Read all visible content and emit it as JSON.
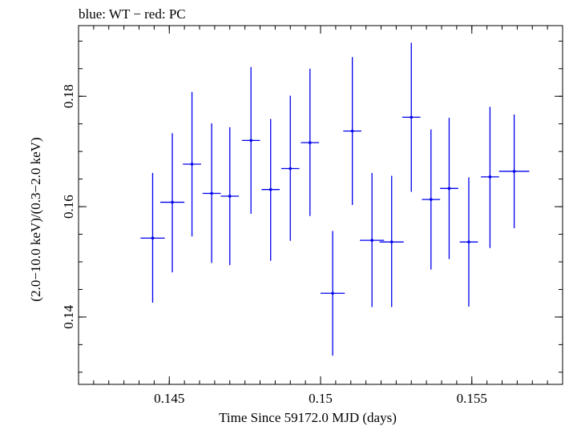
{
  "chart_data": {
    "type": "scatter",
    "title": "blue: WT − red: PC",
    "xlabel": "Time Since 59172.0 MJD (days)",
    "ylabel": "(2.0−10.0 keV)/(0.3−2.0 keV)",
    "xlim": [
      0.142,
      0.158
    ],
    "ylim": [
      0.1278,
      0.1928
    ],
    "x_ticks": [
      0.145,
      0.15,
      0.155
    ],
    "x_tick_labels": [
      "0.145",
      "0.15",
      "0.155"
    ],
    "y_ticks": [
      0.14,
      0.16,
      0.18
    ],
    "y_tick_labels": [
      "0.14",
      "0.16",
      "0.18"
    ],
    "grid": false,
    "series": [
      {
        "color": "#0000ee",
        "points": [
          {
            "x": 0.14445,
            "xerr": 0.0004,
            "y": 0.1543,
            "ylo": 0.1426,
            "yhi": 0.1661
          },
          {
            "x": 0.1451,
            "xerr": 0.0004,
            "y": 0.1608,
            "ylo": 0.1481,
            "yhi": 0.1733
          },
          {
            "x": 0.14575,
            "xerr": 0.0003,
            "y": 0.1677,
            "ylo": 0.1546,
            "yhi": 0.1808
          },
          {
            "x": 0.1464,
            "xerr": 0.0003,
            "y": 0.1624,
            "ylo": 0.1498,
            "yhi": 0.1751
          },
          {
            "x": 0.147,
            "xerr": 0.0003,
            "y": 0.1619,
            "ylo": 0.1494,
            "yhi": 0.1744
          },
          {
            "x": 0.1477,
            "xerr": 0.0003,
            "y": 0.172,
            "ylo": 0.1587,
            "yhi": 0.1853
          },
          {
            "x": 0.14835,
            "xerr": 0.0003,
            "y": 0.1631,
            "ylo": 0.1502,
            "yhi": 0.1759
          },
          {
            "x": 0.149,
            "xerr": 0.0003,
            "y": 0.1669,
            "ylo": 0.1538,
            "yhi": 0.1801
          },
          {
            "x": 0.14965,
            "xerr": 0.0003,
            "y": 0.1716,
            "ylo": 0.1583,
            "yhi": 0.185
          },
          {
            "x": 0.1504,
            "xerr": 0.0004,
            "y": 0.1443,
            "ylo": 0.133,
            "yhi": 0.1556
          },
          {
            "x": 0.15105,
            "xerr": 0.0003,
            "y": 0.1737,
            "ylo": 0.1603,
            "yhi": 0.1871
          },
          {
            "x": 0.1517,
            "xerr": 0.0004,
            "y": 0.1539,
            "ylo": 0.1418,
            "yhi": 0.1661
          },
          {
            "x": 0.15235,
            "xerr": 0.0004,
            "y": 0.1536,
            "ylo": 0.1418,
            "yhi": 0.1656
          },
          {
            "x": 0.153,
            "xerr": 0.0003,
            "y": 0.1762,
            "ylo": 0.1627,
            "yhi": 0.1897
          },
          {
            "x": 0.15365,
            "xerr": 0.0003,
            "y": 0.1613,
            "ylo": 0.1486,
            "yhi": 0.174
          },
          {
            "x": 0.15425,
            "xerr": 0.0003,
            "y": 0.1633,
            "ylo": 0.1505,
            "yhi": 0.1761
          },
          {
            "x": 0.1549,
            "xerr": 0.0003,
            "y": 0.1536,
            "ylo": 0.1419,
            "yhi": 0.1653
          },
          {
            "x": 0.1556,
            "xerr": 0.0003,
            "y": 0.1654,
            "ylo": 0.1525,
            "yhi": 0.1781
          },
          {
            "x": 0.1564,
            "xerr": 0.0005,
            "y": 0.1664,
            "ylo": 0.1561,
            "yhi": 0.1767
          }
        ]
      }
    ]
  }
}
